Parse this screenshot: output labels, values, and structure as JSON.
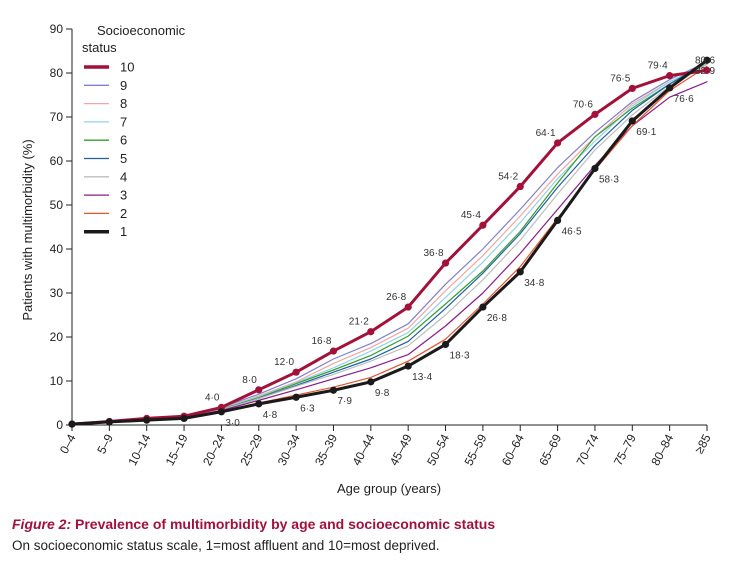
{
  "chart_data": {
    "type": "line",
    "xlabel": "Age group (years)",
    "ylabel": "Patients with multimorbidity (%)",
    "ylim": [
      0,
      90
    ],
    "yticks": [
      0,
      10,
      20,
      30,
      40,
      50,
      60,
      70,
      80,
      90
    ],
    "categories": [
      "0–4",
      "5–9",
      "10–14",
      "15–19",
      "20–24",
      "25–29",
      "30–34",
      "35–39",
      "40–44",
      "45–49",
      "50–54",
      "55–59",
      "60–64",
      "65–69",
      "70–74",
      "75–79",
      "80–84",
      "≥85"
    ],
    "legend_title": "Socioeconomic status",
    "legend_placement": "top-left",
    "series": [
      {
        "name": "10",
        "color": "#a3113a",
        "width": 3,
        "markers": true,
        "values": [
          0.2,
          0.8,
          1.5,
          2.0,
          4.0,
          8.0,
          12.0,
          16.8,
          21.2,
          26.8,
          36.8,
          45.4,
          54.2,
          64.1,
          70.6,
          76.5,
          79.4,
          80.6
        ]
      },
      {
        "name": "9",
        "color": "#7f7fd0",
        "width": 1.2,
        "markers": false,
        "values": [
          0.2,
          0.8,
          1.5,
          2.0,
          4.0,
          7.0,
          10.5,
          15.0,
          18.5,
          23.0,
          32.0,
          40.0,
          49.0,
          58.5,
          66.5,
          73.5,
          78.5,
          82.5
        ]
      },
      {
        "name": "8",
        "color": "#f4a6a0",
        "width": 1.2,
        "markers": false,
        "values": [
          0.2,
          0.8,
          1.4,
          2.0,
          3.8,
          6.6,
          9.8,
          14.0,
          17.6,
          22.0,
          30.5,
          38.5,
          47.5,
          57.0,
          65.5,
          73.0,
          78.0,
          82.0
        ]
      },
      {
        "name": "7",
        "color": "#8fd3e8",
        "width": 1.2,
        "markers": false,
        "values": [
          0.2,
          0.8,
          1.4,
          2.0,
          3.7,
          6.4,
          9.6,
          13.0,
          16.8,
          21.0,
          29.0,
          37.0,
          46.0,
          56.0,
          64.5,
          72.5,
          78.0,
          82.0
        ]
      },
      {
        "name": "6",
        "color": "#33a02c",
        "width": 1.2,
        "markers": false,
        "values": [
          0.2,
          0.8,
          1.3,
          1.9,
          3.6,
          6.2,
          9.4,
          12.5,
          15.8,
          20.2,
          27.5,
          35.0,
          44.0,
          55.0,
          65.5,
          72.0,
          77.5,
          82.0
        ]
      },
      {
        "name": "5",
        "color": "#1f5fa8",
        "width": 1.2,
        "markers": false,
        "values": [
          0.2,
          0.8,
          1.3,
          1.8,
          3.5,
          6.0,
          9.0,
          12.0,
          15.0,
          19.0,
          26.5,
          34.5,
          43.5,
          54.0,
          63.5,
          71.5,
          77.5,
          82.5
        ]
      },
      {
        "name": "4",
        "color": "#bdbdbd",
        "width": 1.2,
        "markers": false,
        "values": [
          0.2,
          0.8,
          1.3,
          1.8,
          3.5,
          6.0,
          8.8,
          11.5,
          14.5,
          18.0,
          25.0,
          33.0,
          42.0,
          52.5,
          62.5,
          70.5,
          77.0,
          82.0
        ]
      },
      {
        "name": "3",
        "color": "#8b1a8b",
        "width": 1.2,
        "markers": false,
        "values": [
          0.2,
          0.8,
          1.2,
          1.7,
          3.3,
          5.6,
          8.0,
          10.5,
          13.0,
          16.0,
          22.5,
          30.0,
          39.0,
          49.0,
          59.0,
          68.0,
          74.5,
          78.0
        ]
      },
      {
        "name": "2",
        "color": "#e8532d",
        "width": 1.2,
        "markers": false,
        "values": [
          0.2,
          0.7,
          1.1,
          1.6,
          3.1,
          5.0,
          6.8,
          8.6,
          10.8,
          14.5,
          19.5,
          27.5,
          36.0,
          47.0,
          58.0,
          68.0,
          76.0,
          81.5
        ]
      },
      {
        "name": "1",
        "color": "#1a1a1a",
        "width": 3,
        "markers": true,
        "values": [
          0.2,
          0.7,
          1.1,
          1.5,
          3.0,
          4.8,
          6.3,
          7.9,
          9.8,
          13.4,
          18.3,
          26.8,
          34.8,
          46.5,
          58.3,
          69.1,
          76.6,
          82.9
        ]
      }
    ],
    "data_labels": [
      {
        "series": "10",
        "index": 4,
        "text": "4·0",
        "pos": "above"
      },
      {
        "series": "10",
        "index": 5,
        "text": "8·0",
        "pos": "above"
      },
      {
        "series": "10",
        "index": 6,
        "text": "12·0",
        "pos": "above"
      },
      {
        "series": "10",
        "index": 7,
        "text": "16·8",
        "pos": "above"
      },
      {
        "series": "10",
        "index": 8,
        "text": "21·2",
        "pos": "above"
      },
      {
        "series": "10",
        "index": 9,
        "text": "26·8",
        "pos": "above"
      },
      {
        "series": "10",
        "index": 10,
        "text": "36·8",
        "pos": "above"
      },
      {
        "series": "10",
        "index": 11,
        "text": "45·4",
        "pos": "above"
      },
      {
        "series": "10",
        "index": 12,
        "text": "54·2",
        "pos": "above"
      },
      {
        "series": "10",
        "index": 13,
        "text": "64·1",
        "pos": "above"
      },
      {
        "series": "10",
        "index": 14,
        "text": "70·6",
        "pos": "above"
      },
      {
        "series": "10",
        "index": 15,
        "text": "76·5",
        "pos": "above"
      },
      {
        "series": "10",
        "index": 16,
        "text": "79·4",
        "pos": "above"
      },
      {
        "series": "10",
        "index": 17,
        "text": "80·6",
        "pos": "above"
      },
      {
        "series": "1",
        "index": 4,
        "text": "3·0",
        "pos": "below"
      },
      {
        "series": "1",
        "index": 5,
        "text": "4·8",
        "pos": "below"
      },
      {
        "series": "1",
        "index": 6,
        "text": "6·3",
        "pos": "below"
      },
      {
        "series": "1",
        "index": 7,
        "text": "7·9",
        "pos": "below"
      },
      {
        "series": "1",
        "index": 8,
        "text": "9·8",
        "pos": "below"
      },
      {
        "series": "1",
        "index": 9,
        "text": "13·4",
        "pos": "below"
      },
      {
        "series": "1",
        "index": 10,
        "text": "18·3",
        "pos": "below"
      },
      {
        "series": "1",
        "index": 11,
        "text": "26·8",
        "pos": "below"
      },
      {
        "series": "1",
        "index": 12,
        "text": "34·8",
        "pos": "below"
      },
      {
        "series": "1",
        "index": 13,
        "text": "46·5",
        "pos": "below"
      },
      {
        "series": "1",
        "index": 14,
        "text": "58·3",
        "pos": "below"
      },
      {
        "series": "1",
        "index": 15,
        "text": "69·1",
        "pos": "below"
      },
      {
        "series": "1",
        "index": 16,
        "text": "76·6",
        "pos": "below"
      },
      {
        "series": "1",
        "index": 17,
        "text": "82·9",
        "pos": "below"
      }
    ]
  },
  "caption": {
    "figure_label": "Figure 2:",
    "title": "Prevalence of multimorbidity by age and socioeconomic status",
    "note": "On socioeconomic status scale, 1=most affluent and 10=most deprived."
  }
}
